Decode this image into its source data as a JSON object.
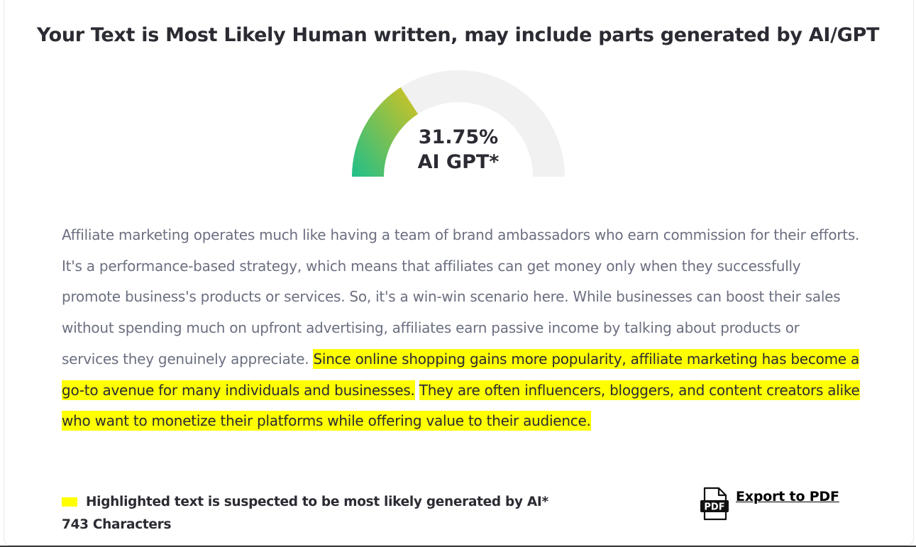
{
  "result": {
    "title": "Your Text is Most Likely Human written, may include parts generated by AI/GPT"
  },
  "gauge": {
    "percent": 31.75,
    "percent_label": "31.75%",
    "sub_label": "AI GPT*",
    "colors": {
      "start": "#1fbf8a",
      "end": "#d6c21e",
      "track": "#f1f1f1"
    }
  },
  "text": {
    "segments": [
      {
        "text": "Affiliate marketing operates much like having a team of brand ambassadors who earn commission for their efforts. It's a performance-based strategy, which means that affiliates can get money only when they successfully promote business's products or services. So, it's a win-win scenario here. While businesses can boost their sales without spending much on upfront advertising, affiliates earn passive income by talking about products or services they genuinely appreciate.",
        "highlighted": false
      },
      {
        "text": "Since online shopping gains more popularity, affiliate marketing has become a go-to avenue for many individuals and businesses.",
        "highlighted": true
      },
      {
        "text": "They are often influencers, bloggers, and content creators alike who want to monetize their platforms while offering value to their audience.",
        "highlighted": true
      }
    ],
    "highlight_color": "#ffff00"
  },
  "legend": {
    "label": "Highlighted text is suspected to be most likely generated by AI*"
  },
  "stats": {
    "characters": "743 Characters"
  },
  "export": {
    "icon_text": "PDF",
    "label": "Export to PDF"
  }
}
